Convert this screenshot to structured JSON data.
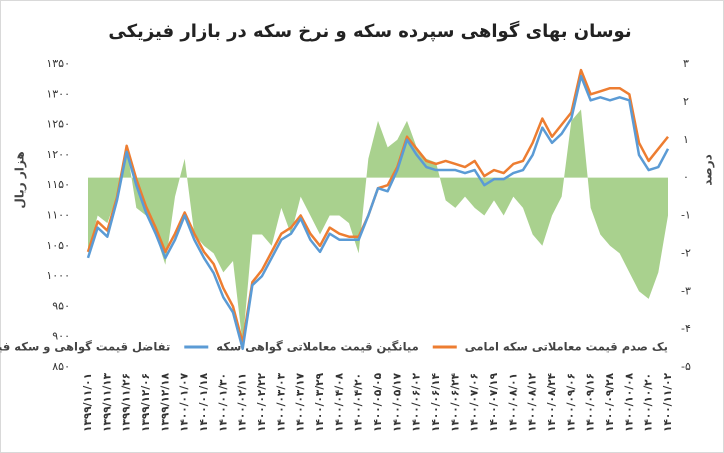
{
  "chart_data": {
    "type": "line",
    "title": "نوسان بهای گواهی سپرده سکه و نرخ سکه در بازار فیزیکی",
    "y_label": "هزار ریال",
    "y2_label": "درصد",
    "categories": [
      "۱۳۹۹/۱۱/۰۱",
      null,
      "۱۳۹۹/۱۱/۱۳",
      null,
      "۱۳۹۹/۱۱/۲۶",
      null,
      "۱۳۹۹/۱۲/۰۶",
      null,
      "۱۳۹۹/۱۲/۱۸",
      null,
      "۱۴۰۰/۰۱/۰۷",
      null,
      "۱۴۰۰/۰۱/۱۸",
      null,
      "۱۴۰۰/۰۱/۳۰",
      null,
      "۱۴۰۰/۰۲/۱۱",
      null,
      "۱۴۰۰/۰۲/۲۲",
      null,
      "۱۴۰۰/۰۳/۰۳",
      null,
      "۱۴۰۰/۰۳/۱۷",
      null,
      "۱۴۰۰/۰۳/۲۹",
      null,
      "۱۴۰۰/۰۴/۰۸",
      null,
      "۱۴۰۰/۰۴/۲۰",
      null,
      "۱۴۰۰/۰۵/۰۵",
      null,
      "۱۴۰۰/۰۵/۱۷",
      null,
      "۱۴۰۰/۰۶/۰۲",
      null,
      "۱۴۰۰/۰۶/۱۴",
      null,
      "۱۴۰۰/۰۶/۲۴",
      null,
      "۱۴۰۰/۰۷/۰۶",
      null,
      "۱۴۰۰/۰۷/۱۹",
      null,
      "۱۴۰۰/۰۸/۰۱",
      null,
      "۱۴۰۰/۰۸/۱۲",
      null,
      "۱۴۰۰/۰۸/۲۴",
      null,
      "۱۴۰۰/۰۹/۰۶",
      null,
      "۱۴۰۰/۰۹/۱۶",
      null,
      "۱۴۰۰/۰۹/۲۸",
      null,
      "۱۴۰۰/۱۰/۰۸",
      null,
      "۱۴۰۰/۱۰/۲۰",
      null,
      "۱۴۰۰/۱۱/۰۲"
    ],
    "series": [
      {
        "name": "یک صدم قیمت معاملاتی سکه امامی",
        "color": "#ed7d31",
        "type": "line",
        "values": [
          1040,
          1090,
          1075,
          1130,
          1215,
          1160,
          1115,
          1080,
          1040,
          1070,
          1105,
          1070,
          1040,
          1020,
          980,
          950,
          890,
          990,
          1010,
          1040,
          1070,
          1080,
          1100,
          1070,
          1050,
          1080,
          1070,
          1065,
          1065,
          1100,
          1145,
          1150,
          1180,
          1230,
          1210,
          1190,
          1185,
          1190,
          1185,
          1180,
          1190,
          1165,
          1175,
          1170,
          1185,
          1190,
          1220,
          1260,
          1230,
          1250,
          1270,
          1340,
          1300,
          1305,
          1310,
          1310,
          1300,
          1220,
          1190,
          1210,
          1230
        ]
      },
      {
        "name": "میانگین قیمت معاملاتی گواهی سکه",
        "color": "#5b9bd5",
        "type": "line",
        "values": [
          1030,
          1080,
          1065,
          1125,
          1205,
          1150,
          1105,
          1070,
          1030,
          1060,
          1100,
          1060,
          1030,
          1005,
          965,
          940,
          880,
          985,
          1000,
          1030,
          1060,
          1070,
          1095,
          1060,
          1040,
          1070,
          1060,
          1060,
          1060,
          1100,
          1145,
          1140,
          1175,
          1225,
          1200,
          1180,
          1175,
          1175,
          1175,
          1170,
          1175,
          1150,
          1160,
          1160,
          1170,
          1175,
          1200,
          1245,
          1220,
          1235,
          1260,
          1330,
          1290,
          1295,
          1290,
          1295,
          1290,
          1200,
          1175,
          1180,
          1210
        ]
      },
      {
        "name": "تفاضل قیمت گواهی و سکه فیزیکی",
        "color": "#a9d18e",
        "type": "area",
        "axis": "y2",
        "values": [
          -2.0,
          -1.0,
          -1.2,
          -0.5,
          0.8,
          -0.8,
          -1.0,
          -1.5,
          -2.3,
          -0.5,
          0.5,
          -1.5,
          -1.8,
          -2.0,
          -2.5,
          -2.2,
          -4.4,
          -1.5,
          -1.5,
          -1.8,
          -0.8,
          -1.5,
          -0.5,
          -1.0,
          -1.5,
          -1.0,
          -1.0,
          -1.2,
          -2.0,
          0.5,
          1.5,
          0.8,
          1.0,
          1.5,
          0.8,
          0.5,
          0.4,
          -0.6,
          -0.8,
          -0.5,
          -0.8,
          -1.0,
          -0.6,
          -1.0,
          -0.5,
          -0.8,
          -1.5,
          -1.8,
          -1.0,
          -0.5,
          1.5,
          1.8,
          -0.8,
          -1.5,
          -1.8,
          -2.0,
          -2.5,
          -3.0,
          -3.2,
          -2.5,
          -1.0
        ]
      }
    ],
    "ylim": [
      850,
      1350
    ],
    "yticks": [
      {
        "value": 850,
        "label": "۸۵۰"
      },
      {
        "value": 900,
        "label": "۹۰۰"
      },
      {
        "value": 950,
        "label": "۹۵۰"
      },
      {
        "value": 1000,
        "label": "۱۰۰۰"
      },
      {
        "value": 1050,
        "label": "۱۰۵۰"
      },
      {
        "value": 1100,
        "label": "۱۱۰۰"
      },
      {
        "value": 1150,
        "label": "۱۱۵۰"
      },
      {
        "value": 1200,
        "label": "۱۲۰۰"
      },
      {
        "value": 1250,
        "label": "۱۲۵۰"
      },
      {
        "value": 1300,
        "label": "۱۳۰۰"
      },
      {
        "value": 1350,
        "label": "۱۳۵۰"
      }
    ],
    "y2lim": [
      -5,
      3
    ],
    "y2ticks": [
      {
        "value": -5,
        "label": "-۵"
      },
      {
        "value": -4,
        "label": "-۴"
      },
      {
        "value": -3,
        "label": "-۳"
      },
      {
        "value": -2,
        "label": "-۲"
      },
      {
        "value": -1,
        "label": "-۱"
      },
      {
        "value": 0,
        "label": "۰"
      },
      {
        "value": 1,
        "label": "۱"
      },
      {
        "value": 2,
        "label": "۲"
      },
      {
        "value": 3,
        "label": "۳"
      }
    ],
    "legend": "bottom"
  }
}
